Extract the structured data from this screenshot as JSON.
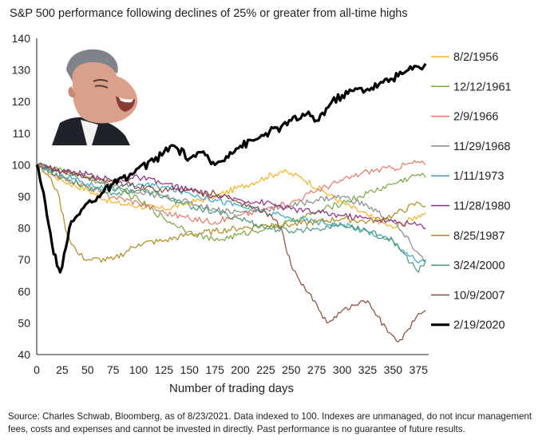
{
  "title": "S&P 500 performance following declines of 25% or greater from all-time highs",
  "source_note": "Source: Charles Schwab, Bloomberg, as of 8/23/2021. Data indexed to 100. Indexes are unmanaged, do not incur management fees, costs and expenses and cannot be invested in directly. Past performance is no guarantee of future results.",
  "chart_data": {
    "type": "line",
    "title": "S&P 500 performance following declines of 25% or greater from all-time highs",
    "xlabel": "Number of trading days",
    "ylabel": "",
    "xlim": [
      0,
      385
    ],
    "ylim": [
      40,
      140
    ],
    "xticks": [
      0,
      25,
      50,
      75,
      100,
      125,
      150,
      175,
      200,
      225,
      250,
      275,
      300,
      325,
      350,
      375
    ],
    "yticks": [
      40,
      50,
      60,
      70,
      80,
      90,
      100,
      110,
      120,
      130,
      140
    ],
    "grid": false,
    "legend_position": "right",
    "series": [
      {
        "name": "8/2/1956",
        "color": "#f2b221",
        "x": [
          0,
          25,
          50,
          75,
          100,
          125,
          150,
          175,
          200,
          225,
          240,
          260,
          280,
          300,
          325,
          350,
          375,
          382
        ],
        "y": [
          100,
          95,
          92,
          88,
          87,
          86,
          88,
          90,
          93,
          96,
          98,
          96,
          92,
          88,
          84,
          80,
          84,
          85
        ]
      },
      {
        "name": "12/12/1961",
        "color": "#7aa640",
        "x": [
          0,
          25,
          50,
          75,
          100,
          125,
          150,
          175,
          200,
          225,
          250,
          275,
          300,
          325,
          350,
          375,
          382
        ],
        "y": [
          100,
          98,
          96,
          93,
          89,
          83,
          79,
          76,
          78,
          80,
          82,
          85,
          88,
          91,
          94,
          97,
          96
        ]
      },
      {
        "name": "2/9/1966",
        "color": "#de7a6a",
        "x": [
          0,
          25,
          50,
          75,
          100,
          125,
          150,
          175,
          200,
          225,
          250,
          275,
          300,
          325,
          350,
          375,
          382
        ],
        "y": [
          100,
          96,
          93,
          90,
          88,
          85,
          83,
          82,
          84,
          86,
          88,
          92,
          95,
          98,
          99,
          101,
          100
        ]
      },
      {
        "name": "11/29/1968",
        "color": "#8a8a8a",
        "x": [
          0,
          25,
          50,
          75,
          100,
          125,
          150,
          175,
          200,
          225,
          250,
          275,
          300,
          325,
          350,
          375,
          382
        ],
        "y": [
          100,
          98,
          96,
          93,
          91,
          90,
          88,
          86,
          85,
          86,
          87,
          89,
          90,
          87,
          82,
          72,
          69
        ]
      },
      {
        "name": "1/11/1973",
        "color": "#38a3c9",
        "x": [
          0,
          25,
          50,
          75,
          100,
          125,
          150,
          175,
          200,
          225,
          250,
          275,
          300,
          325,
          350,
          375,
          382
        ],
        "y": [
          100,
          97,
          94,
          92,
          94,
          93,
          91,
          89,
          87,
          85,
          83,
          82,
          81,
          79,
          76,
          69,
          70
        ]
      },
      {
        "name": "11/28/1980",
        "color": "#8e2a84",
        "x": [
          0,
          25,
          50,
          75,
          100,
          125,
          150,
          175,
          200,
          225,
          250,
          275,
          300,
          325,
          350,
          375,
          382
        ],
        "y": [
          100,
          98,
          97,
          95,
          96,
          94,
          92,
          90,
          89,
          88,
          86,
          85,
          84,
          83,
          82,
          81,
          80
        ]
      },
      {
        "name": "8/25/1987",
        "color": "#b08922",
        "x": [
          0,
          10,
          20,
          30,
          40,
          50,
          75,
          100,
          125,
          150,
          175,
          200,
          225,
          250,
          275,
          300,
          325,
          350,
          375,
          382
        ],
        "y": [
          100,
          97,
          92,
          78,
          72,
          70,
          70,
          75,
          76,
          78,
          79,
          80,
          81,
          81,
          82,
          83,
          82,
          84,
          88,
          87
        ]
      },
      {
        "name": "3/24/2000",
        "color": "#4a9a73",
        "x": [
          0,
          25,
          50,
          75,
          100,
          125,
          150,
          175,
          200,
          225,
          250,
          275,
          300,
          325,
          350,
          375,
          382
        ],
        "y": [
          100,
          96,
          93,
          91,
          92,
          90,
          87,
          85,
          83,
          80,
          79,
          80,
          81,
          79,
          76,
          66,
          70
        ]
      },
      {
        "name": "10/9/2007",
        "color": "#8a4a3a",
        "x": [
          0,
          25,
          50,
          75,
          100,
          125,
          150,
          175,
          200,
          225,
          240,
          250,
          260,
          275,
          285,
          300,
          325,
          345,
          355,
          365,
          375,
          382
        ],
        "y": [
          100,
          98,
          96,
          95,
          93,
          92,
          92,
          91,
          88,
          85,
          80,
          68,
          62,
          56,
          50,
          54,
          57,
          47,
          44,
          48,
          53,
          54
        ]
      },
      {
        "name": "2/19/2020",
        "color": "#000000",
        "bold": true,
        "x": [
          0,
          5,
          10,
          15,
          20,
          23,
          27,
          32,
          40,
          50,
          60,
          75,
          90,
          100,
          115,
          125,
          135,
          150,
          160,
          175,
          190,
          200,
          215,
          225,
          240,
          250,
          265,
          275,
          290,
          300,
          315,
          325,
          340,
          355,
          365,
          375,
          382
        ],
        "y": [
          100,
          93,
          84,
          75,
          68,
          66,
          72,
          80,
          84,
          88,
          90,
          94,
          96,
          99,
          101,
          104,
          106,
          102,
          104,
          100,
          104,
          106,
          108,
          110,
          112,
          114,
          116,
          114,
          120,
          122,
          124,
          124,
          126,
          128,
          130,
          131,
          132
        ]
      }
    ]
  },
  "photo": {
    "icon": "laughing-man-photo",
    "bg": "#ffffff",
    "skin": "#d9a08a",
    "suit": "#1f2329",
    "hair": "#6e7178"
  }
}
